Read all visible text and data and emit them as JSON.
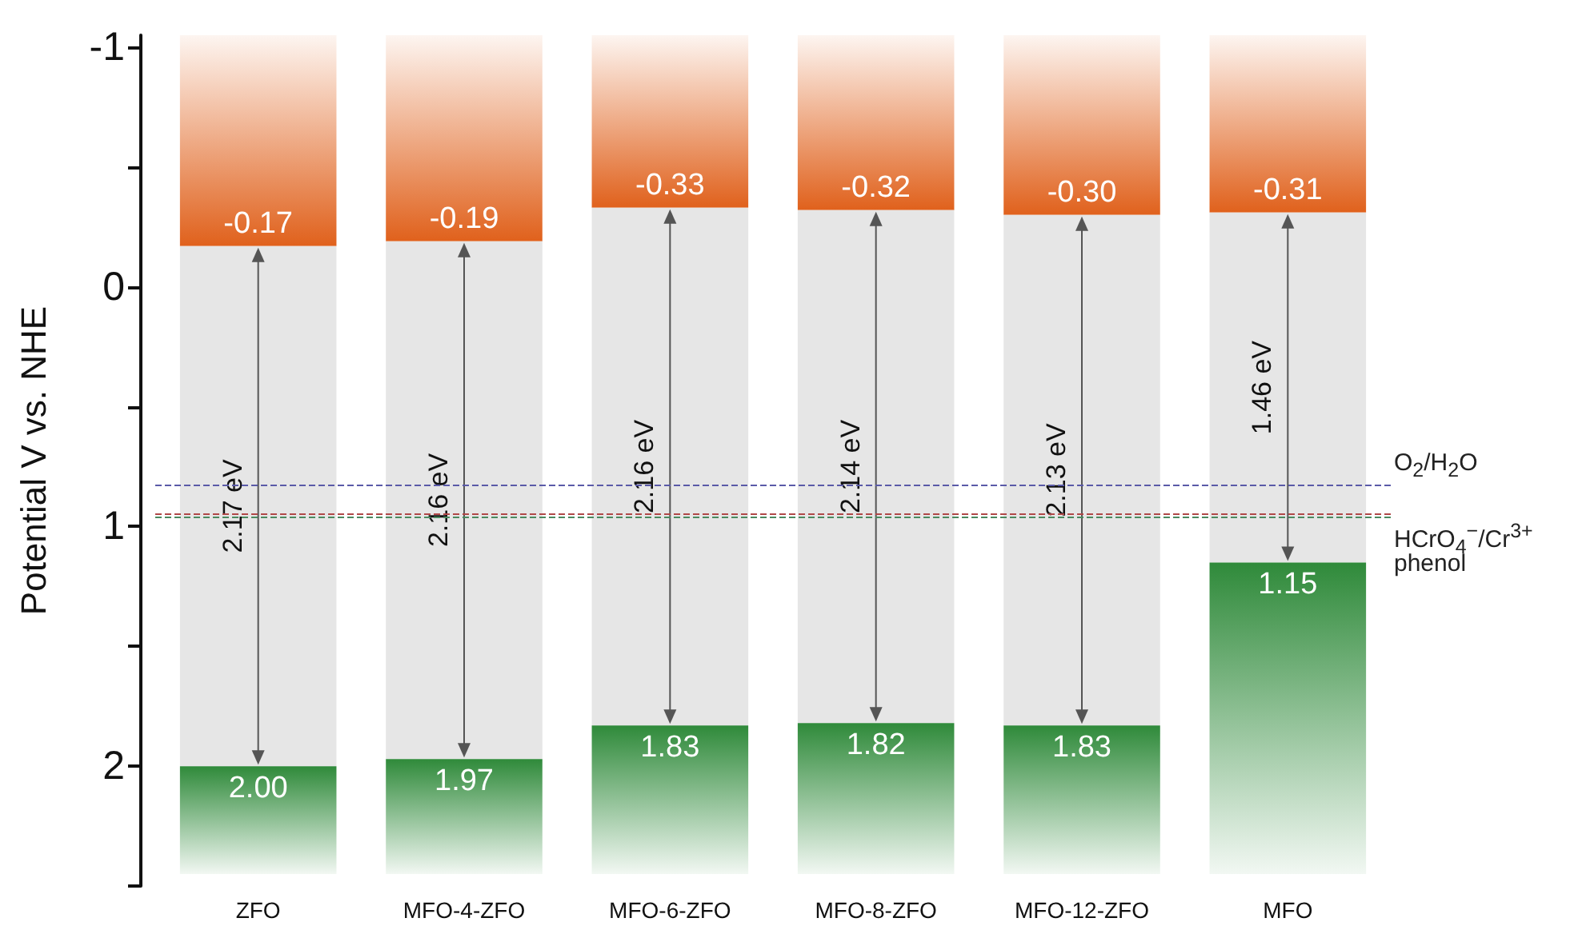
{
  "chart_data": {
    "type": "bar",
    "ylabel": "Potential V vs. NHE",
    "categories": [
      "ZFO",
      "MFO-4-ZFO",
      "MFO-6-ZFO",
      "MFO-8-ZFO",
      "MFO-12-ZFO",
      "MFO"
    ],
    "series": [
      {
        "color": "#e0611c",
        "base": [
          -1.05,
          -1.05,
          -1.05,
          -1.05,
          -1.05,
          -1.05
        ],
        "values": [
          0.88,
          0.86,
          0.72,
          0.73,
          0.75,
          0.74
        ]
      },
      {
        "color": "#e6e6e6",
        "base": [
          -0.17,
          -0.19,
          -0.33,
          -0.32,
          -0.3,
          -0.31
        ],
        "values": [
          2.17,
          2.16,
          2.16,
          2.14,
          2.13,
          1.46
        ],
        "value_labels": [
          "2.17 eV",
          "2.16 eV",
          "2.16 eV",
          "2.14 eV",
          "2.13 eV",
          "1.46 eV"
        ]
      },
      {
        "color": "#2f8a3a",
        "base": [
          2.0,
          1.97,
          1.83,
          1.82,
          1.83,
          1.15
        ],
        "values": [
          0.45,
          0.48,
          0.62,
          0.63,
          0.62,
          1.3
        ]
      }
    ],
    "annotations": [
      {
        "text": "-0.17",
        "x": "ZFO",
        "y": -0.17
      },
      {
        "text": "-0.19",
        "x": "MFO-4-ZFO",
        "y": -0.19
      },
      {
        "text": "-0.33",
        "x": "MFO-6-ZFO",
        "y": -0.33
      },
      {
        "text": "-0.32",
        "x": "MFO-8-ZFO",
        "y": -0.32
      },
      {
        "text": "-0.30",
        "x": "MFO-12-ZFO",
        "y": -0.3
      },
      {
        "text": "-0.31",
        "x": "MFO",
        "y": -0.31
      },
      {
        "text": "2.00",
        "x": "ZFO",
        "y": 2.0
      },
      {
        "text": "1.97",
        "x": "MFO-4-ZFO",
        "y": 1.97
      },
      {
        "text": "1.83",
        "x": "MFO-6-ZFO",
        "y": 1.83
      },
      {
        "text": "1.82",
        "x": "MFO-8-ZFO",
        "y": 1.82
      },
      {
        "text": "1.83",
        "x": "MFO-12-ZFO",
        "y": 1.83
      },
      {
        "text": "1.15",
        "x": "MFO",
        "y": 1.15
      }
    ],
    "ref_lines": [
      {
        "axis": "y",
        "value": 0.83,
        "label": "O$_{2}$/H$_{2}$O",
        "color": "#5a5aa8",
        "line_style": "dashed"
      },
      {
        "axis": "y",
        "value": 0.95,
        "label": "HCrO$_{4}$$^{−}$/Cr$^{3+}$",
        "color": "#b04848",
        "line_style": "dashed"
      },
      {
        "axis": "y",
        "value": 0.96,
        "label": "phenol",
        "color": "#4a8a60",
        "line_style": "dashed"
      }
    ],
    "ylim": [
      2.5,
      -1.05
    ],
    "yticks": [
      -1,
      {
        "value": -0.5,
        "label": null
      },
      0,
      {
        "value": 0.5,
        "label": null
      },
      1,
      {
        "value": 1.5,
        "label": null
      },
      2,
      {
        "value": 2.5,
        "label": null
      }
    ],
    "grid": false
  }
}
